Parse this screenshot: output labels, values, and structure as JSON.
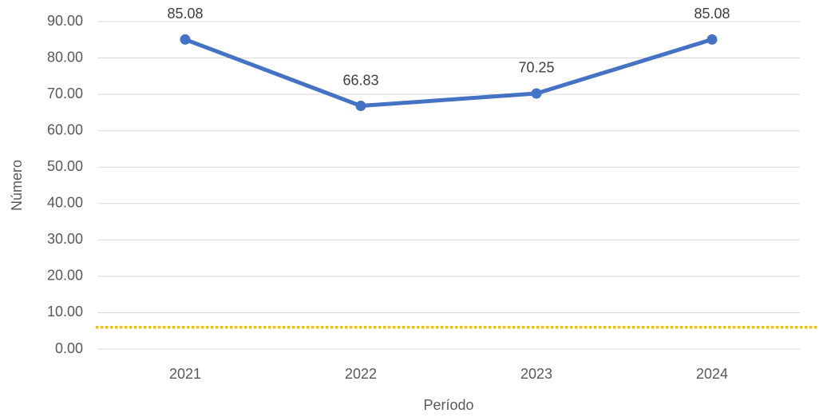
{
  "chart_data": {
    "type": "line",
    "x_label": "Período",
    "y_label": "Número",
    "categories": [
      "2021",
      "2022",
      "2023",
      "2024"
    ],
    "series": [
      {
        "color": "#4472c4",
        "values": [
          85.08,
          66.83,
          70.25,
          85.08
        ]
      }
    ],
    "reference_line": {
      "value": 6,
      "color": "#f2c200"
    },
    "ylim": [
      0,
      90
    ],
    "yticks": [
      {
        "value": 0,
        "label": "0.00"
      },
      {
        "value": 10,
        "label": "10.00"
      },
      {
        "value": 20,
        "label": "20.00"
      },
      {
        "value": 30,
        "label": "30.00"
      },
      {
        "value": 40,
        "label": "40.00"
      },
      {
        "value": 50,
        "label": "50.00"
      },
      {
        "value": 60,
        "label": "60.00"
      },
      {
        "value": 70,
        "label": "70.00"
      },
      {
        "value": 80,
        "label": "80.00"
      },
      {
        "value": 90,
        "label": "90.00"
      }
    ],
    "grid": true
  }
}
